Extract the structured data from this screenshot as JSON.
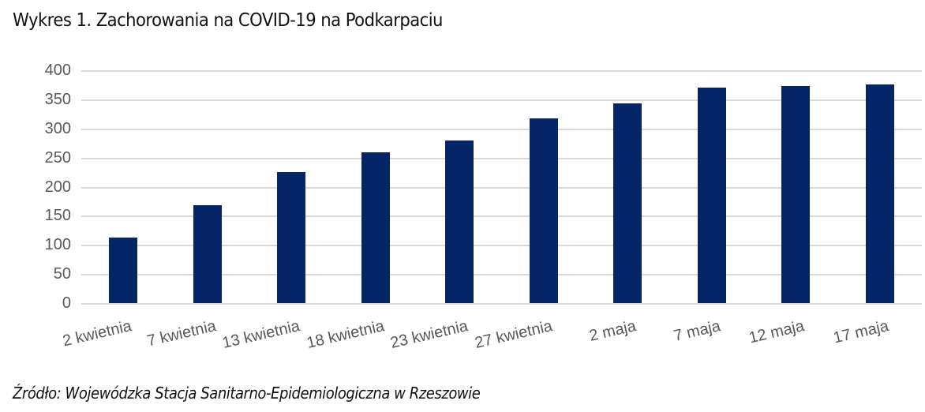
{
  "title": "Wykres 1. Zachorowania na COVID-19 na Podkarpaciu",
  "source": "Źródło: Wojewódzka Stacja Sanitarno-Epidemiologiczna w Rzeszowie",
  "colors": {
    "bar": "#062566",
    "gridline": "#d9d9d9",
    "axis_text": "#595959"
  },
  "chart_data": {
    "type": "bar",
    "title": "Wykres 1. Zachorowania na COVID-19 na Podkarpaciu",
    "xlabel": "",
    "ylabel": "",
    "categories": [
      "2 kwietnia",
      "7 kwietnia",
      "13 kwietnia",
      "18 kwietnia",
      "23 kwietnia",
      "27 kwietnia",
      "2 maja",
      "7 maja",
      "12 maja",
      "17 maja"
    ],
    "values": [
      114,
      169,
      227,
      261,
      281,
      318,
      344,
      372,
      374,
      377
    ],
    "ylim": [
      0,
      400
    ],
    "yticks": [
      "0",
      "50",
      "100",
      "150",
      "200",
      "250",
      "300",
      "350",
      "400"
    ],
    "grid": true,
    "legend": null
  }
}
